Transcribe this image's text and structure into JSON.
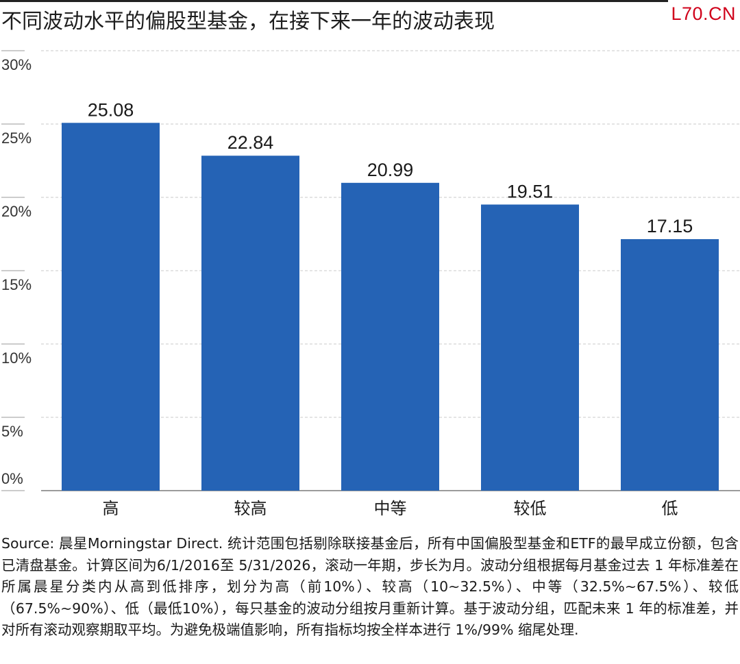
{
  "header": {
    "title": "不同波动水平的偏股型基金，在接下来一年的波动表现",
    "brand": "L70.CN"
  },
  "chart_data": {
    "type": "bar",
    "categories": [
      "高",
      "较高",
      "中等",
      "较低",
      "低"
    ],
    "values": [
      25.08,
      22.84,
      20.99,
      19.51,
      17.15
    ],
    "value_labels": [
      "25.08",
      "22.84",
      "20.99",
      "19.51",
      "17.15"
    ],
    "ylim": [
      0,
      30
    ],
    "yticks": [
      0,
      5,
      10,
      15,
      20,
      25,
      30
    ],
    "ytick_labels": [
      "0%",
      "5%",
      "10%",
      "15%",
      "20%",
      "25%",
      "30%"
    ],
    "grid": true,
    "bar_color": "#2563b5"
  },
  "footer": {
    "source": "Source: 晨星Morningstar Direct. 统计范围包括剔除联接基金后，所有中国偏股型基金和ETF的最早成立份额，包含已清盘基金。计算区间为6/1/2016至 5/31/2026，滚动一年期，步长为月。波动分组根据每月基金过去 1 年标准差在所属晨星分类内从高到低排序，划分为高（前10%）、较高（10~32.5%）、中等（32.5%~67.5%）、较低（67.5%~90%）、低（最低10%），每只基金的波动分组按月重新计算。基于波动分组，匹配未来 1 年的标准差，并对所有滚动观察期取平均。为避免极端值影响，所有指标均按全样本进行 1%/99% 缩尾处理."
  }
}
